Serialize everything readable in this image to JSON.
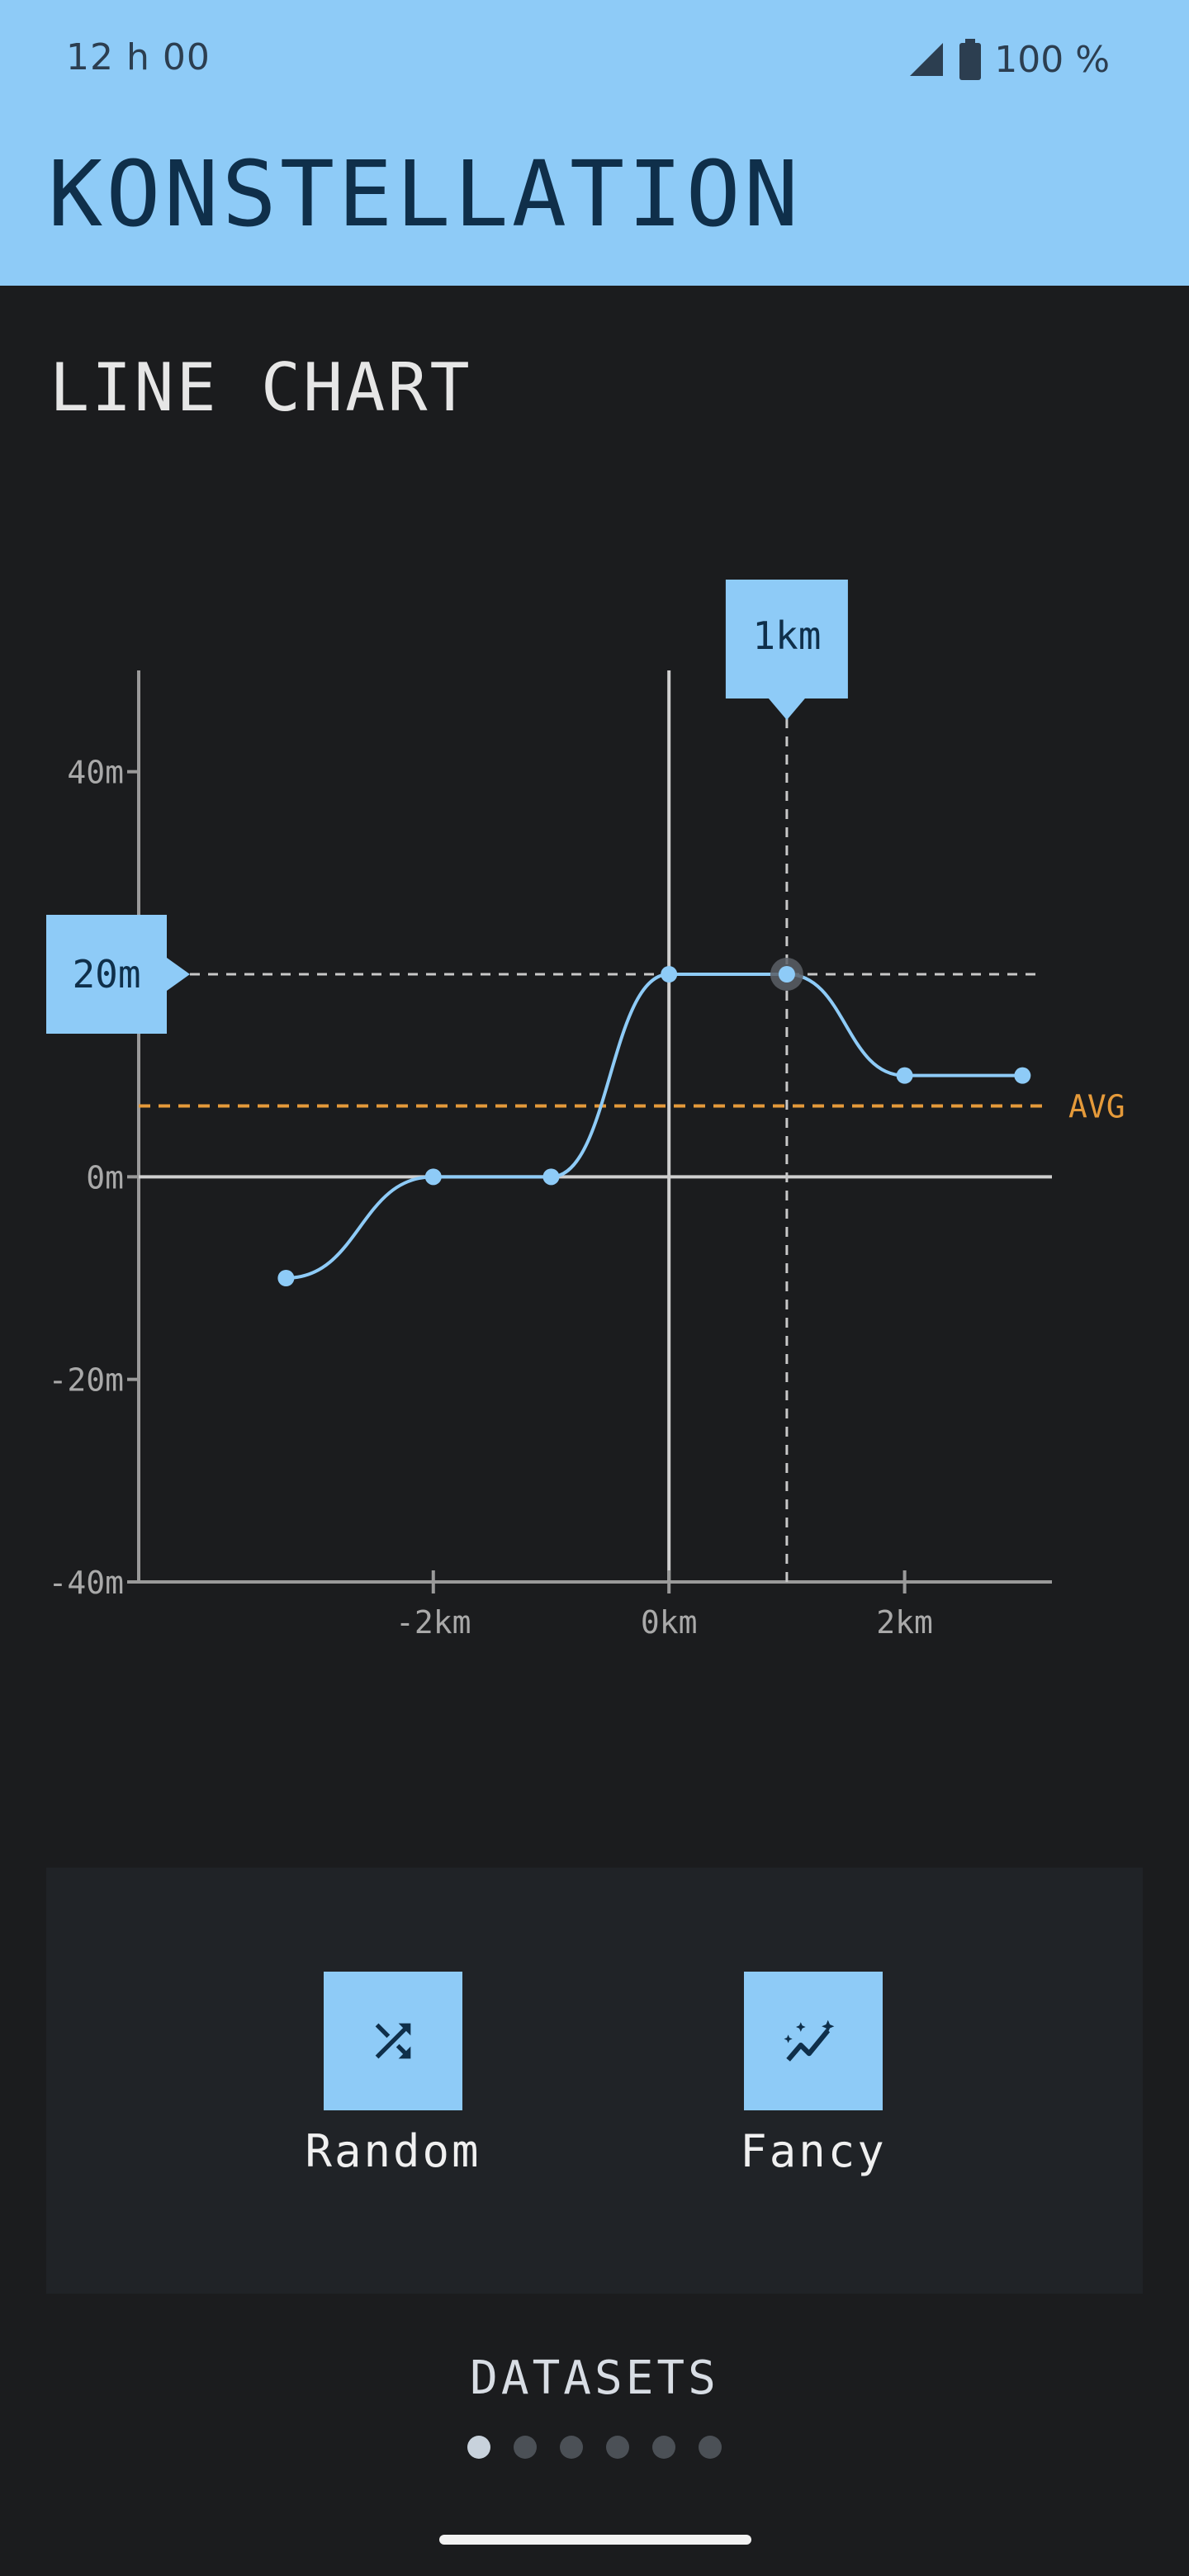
{
  "status_bar": {
    "time": "12 h 00",
    "battery": "100 %",
    "icons": [
      "signal-icon",
      "battery-icon"
    ]
  },
  "app": {
    "title": "KONSTELLATION"
  },
  "section": {
    "title": "LINE CHART"
  },
  "chart_data": {
    "type": "line",
    "title": "",
    "xlabel": "",
    "ylabel": "",
    "x": [
      -3.25,
      -2,
      -1,
      0,
      1,
      2,
      3
    ],
    "y": [
      -10,
      0,
      0,
      20,
      20,
      10,
      10
    ],
    "xlim": [
      -4.5,
      3.25
    ],
    "ylim": [
      -40,
      50
    ],
    "x_ticks": [
      -2,
      0,
      2
    ],
    "x_tick_labels": [
      "-2km",
      "0km",
      "2km"
    ],
    "y_ticks": [
      -40,
      -20,
      0,
      20,
      40
    ],
    "y_tick_labels": [
      "-40m",
      "-20m",
      "0m",
      "20m",
      "40m"
    ],
    "average": 7,
    "average_label": "AVG",
    "selected": {
      "x": 1,
      "y": 20,
      "x_label": "1km",
      "y_label": "20m"
    },
    "grid": false,
    "colors": {
      "line": "#8ecbf7",
      "average": "#e59a3a",
      "axis": "#9a9a9a",
      "zero": "#cfcfcf",
      "crosshair": "#c8c8c8"
    }
  },
  "datasets": {
    "items": [
      {
        "label": "Random",
        "icon": "shuffle-icon"
      },
      {
        "label": "Fancy",
        "icon": "sparkle-chart-icon"
      }
    ],
    "title": "DATASETS",
    "pages": 6,
    "active_page": 0
  },
  "colors": {
    "accent": "#8ecbf7",
    "background": "#1b1c1e",
    "panel": "#202327"
  }
}
